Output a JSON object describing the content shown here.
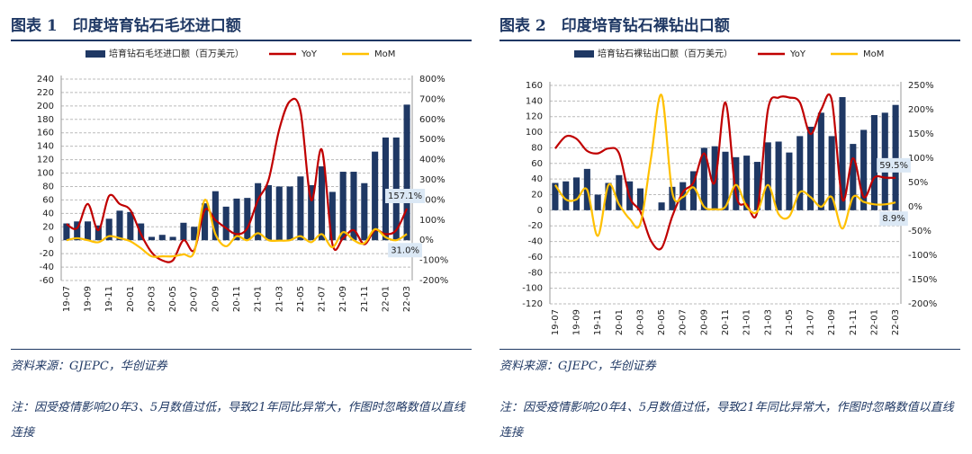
{
  "chart_data": [
    {
      "type": "bar",
      "title": "图表 1　印度培育钻石毛坯进口额",
      "source": "资料来源：GJEPC，华创证券",
      "note": "注：因受疫情影响20年3、5月数值过低，导致21年同比异常大，作图时忽略数值以直线连接",
      "categories": [
        "19-07",
        null,
        "19-09",
        null,
        "19-11",
        null,
        "20-01",
        null,
        "20-03",
        null,
        "20-05",
        null,
        "20-07",
        null,
        "20-09",
        null,
        "20-11",
        null,
        "21-01",
        null,
        "21-03",
        null,
        "21-05",
        null,
        "21-07",
        null,
        "21-09",
        null,
        "21-11",
        null,
        "22-01",
        null,
        "22-03"
      ],
      "ylim": [
        -60,
        240
      ],
      "yticks": [
        -60,
        -40,
        -20,
        0,
        20,
        40,
        60,
        80,
        100,
        120,
        140,
        160,
        180,
        200,
        220,
        240
      ],
      "y2lim": [
        -200,
        800
      ],
      "y2ticks": [
        {
          "value": -200,
          "label": "-200%"
        },
        {
          "value": -100,
          "label": "-100%"
        },
        {
          "value": 0,
          "label": "0%"
        },
        {
          "value": 100,
          "label": "100%"
        },
        {
          "value": 200,
          "label": "200%"
        },
        {
          "value": 300,
          "label": "300%"
        },
        {
          "value": 400,
          "label": "400%"
        },
        {
          "value": 500,
          "label": "500%"
        },
        {
          "value": 600,
          "label": "600%"
        },
        {
          "value": 700,
          "label": "700%"
        },
        {
          "value": 800,
          "label": "800%"
        }
      ],
      "grid": true,
      "series": [
        {
          "name": "培育钻石毛坯进口额（百万美元）",
          "type": "bar",
          "color": "#1f3864",
          "values": [
            25,
            28,
            28,
            22,
            32,
            44,
            42,
            25,
            5,
            8,
            5,
            26,
            20,
            55,
            73,
            50,
            62,
            63,
            85,
            82,
            80,
            80,
            95,
            82,
            110,
            72,
            102,
            102,
            85,
            132,
            153,
            153,
            202
          ]
        },
        {
          "name": "YoY",
          "type": "line",
          "axis": "y2",
          "color": "#c00000",
          "values": [
            80,
            60,
            180,
            50,
            220,
            180,
            150,
            30,
            -60,
            -100,
            -100,
            0,
            -50,
            150,
            100,
            60,
            30,
            60,
            200,
            300,
            550,
            690,
            640,
            200,
            450,
            -20,
            10,
            50,
            -20,
            50,
            30,
            50,
            157.1
          ],
          "value_labels": [
            null,
            null,
            null,
            null,
            null,
            null,
            null,
            null,
            null,
            null,
            null,
            null,
            null,
            null,
            null,
            null,
            null,
            null,
            null,
            null,
            null,
            null,
            null,
            null,
            null,
            null,
            null,
            null,
            null,
            null,
            null,
            null,
            "157.1%"
          ]
        },
        {
          "name": "MoM",
          "type": "line",
          "axis": "y2",
          "color": "#ffc000",
          "values": [
            0,
            10,
            0,
            -10,
            20,
            10,
            -5,
            -40,
            -80,
            -80,
            -80,
            -70,
            -60,
            200,
            30,
            -30,
            20,
            0,
            35,
            0,
            -2,
            0,
            20,
            -10,
            30,
            -35,
            40,
            0,
            -15,
            55,
            15,
            0,
            31.0
          ],
          "value_labels": [
            null,
            null,
            null,
            null,
            null,
            null,
            null,
            null,
            null,
            null,
            null,
            null,
            null,
            null,
            null,
            null,
            null,
            null,
            null,
            null,
            null,
            null,
            null,
            null,
            null,
            null,
            null,
            null,
            null,
            null,
            null,
            null,
            "31.0%"
          ]
        }
      ]
    },
    {
      "type": "bar",
      "title": "图表 2　印度培育钻石裸钻出口额",
      "source": "资料来源：GJEPC，华创证券",
      "note": "注：因受疫情影响20年4、5月数值过低，导致21年同比异常大，作图时忽略数值以直线连接",
      "categories": [
        "19-07",
        null,
        "19-09",
        null,
        "19-11",
        null,
        "20-01",
        null,
        "20-03",
        null,
        "20-05",
        null,
        "20-07",
        null,
        "20-09",
        null,
        "20-11",
        null,
        "21-01",
        null,
        "21-03",
        null,
        "21-05",
        null,
        "21-07",
        null,
        "21-09",
        null,
        "21-11",
        null,
        "22-01",
        null,
        "22-03"
      ],
      "ylim": [
        -120,
        160
      ],
      "yticks": [
        -120,
        -100,
        -80,
        -60,
        -40,
        -20,
        0,
        20,
        40,
        60,
        80,
        100,
        120,
        140,
        160
      ],
      "y2lim": [
        -200,
        250
      ],
      "y2ticks": [
        {
          "value": -200,
          "label": "-200%"
        },
        {
          "value": -150,
          "label": "-150%"
        },
        {
          "value": -100,
          "label": "-100%"
        },
        {
          "value": -50,
          "label": "-50%"
        },
        {
          "value": 0,
          "label": "0%"
        },
        {
          "value": 50,
          "label": "50%"
        },
        {
          "value": 100,
          "label": "100%"
        },
        {
          "value": 150,
          "label": "150%"
        },
        {
          "value": 200,
          "label": "200%"
        },
        {
          "value": 250,
          "label": "250%"
        }
      ],
      "grid": true,
      "series": [
        {
          "name": "培育钻石裸钻出口额（百万美元）",
          "type": "bar",
          "color": "#1f3864",
          "values": [
            35,
            37,
            42,
            53,
            20,
            35,
            45,
            37,
            28,
            0,
            10,
            30,
            36,
            50,
            80,
            82,
            75,
            68,
            70,
            62,
            87,
            88,
            74,
            95,
            107,
            125,
            95,
            145,
            85,
            103,
            122,
            125,
            135
          ]
        },
        {
          "name": "YoY",
          "type": "line",
          "axis": "y2",
          "color": "#c00000",
          "values": [
            120,
            145,
            140,
            115,
            110,
            120,
            110,
            20,
            -10,
            -70,
            -85,
            -20,
            30,
            50,
            110,
            50,
            215,
            25,
            5,
            -10,
            200,
            225,
            225,
            215,
            150,
            200,
            220,
            15,
            100,
            20,
            60,
            60,
            59.5
          ],
          "value_labels": [
            null,
            null,
            null,
            null,
            null,
            null,
            null,
            null,
            null,
            null,
            null,
            null,
            null,
            null,
            null,
            null,
            null,
            null,
            null,
            null,
            null,
            null,
            null,
            null,
            null,
            null,
            null,
            null,
            null,
            null,
            null,
            null,
            "59.5%"
          ]
        },
        {
          "name": "MoM",
          "type": "line",
          "axis": "y2",
          "color": "#ffc000",
          "values": [
            45,
            15,
            15,
            35,
            -60,
            45,
            5,
            -25,
            -35,
            100,
            230,
            30,
            20,
            40,
            0,
            -5,
            0,
            45,
            0,
            -10,
            45,
            -15,
            -20,
            30,
            20,
            0,
            20,
            -45,
            20,
            10,
            5,
            5,
            8.9
          ],
          "value_labels": [
            null,
            null,
            null,
            null,
            null,
            null,
            null,
            null,
            null,
            null,
            null,
            null,
            null,
            null,
            null,
            null,
            null,
            null,
            null,
            null,
            null,
            null,
            null,
            null,
            null,
            null,
            null,
            null,
            null,
            null,
            null,
            null,
            "8.9%"
          ]
        }
      ]
    }
  ]
}
